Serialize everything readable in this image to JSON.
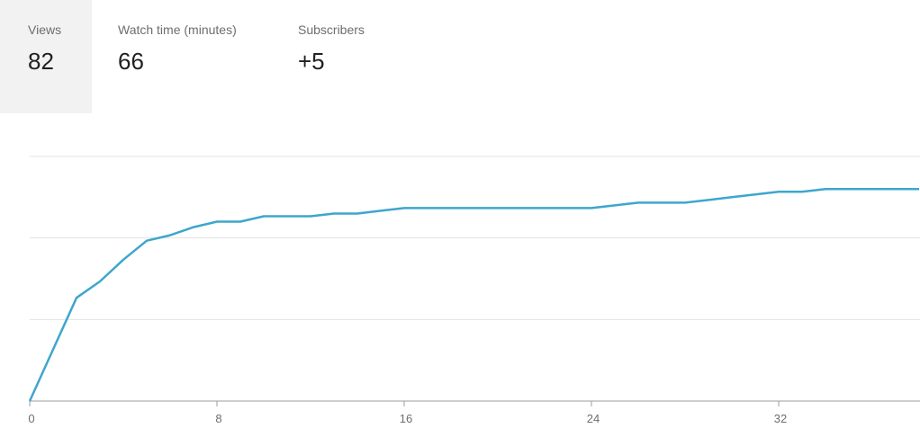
{
  "metrics": {
    "views": {
      "label": "Views",
      "value": "82",
      "selected": true
    },
    "watch_time": {
      "label": "Watch time (minutes)",
      "value": "66",
      "selected": false
    },
    "subscribers": {
      "label": "Subscribers",
      "value": "+5",
      "selected": false
    }
  },
  "colors": {
    "line": "#3ea6cc",
    "grid": "#e3e3e3",
    "axis": "#9e9e9e",
    "selected_tab_bg": "#f2f2f2"
  },
  "chart_data": {
    "type": "line",
    "xlabel": "",
    "ylabel": "",
    "xlim": [
      0,
      38
    ],
    "ylim": [
      0,
      90
    ],
    "grid": true,
    "y_gridlines": [
      30,
      60,
      90
    ],
    "x_ticks": [
      "0",
      "8",
      "16",
      "24",
      "32"
    ],
    "series": [
      {
        "x": [
          0,
          1,
          2,
          3,
          4,
          5,
          6,
          7,
          8,
          9,
          10,
          11,
          12,
          13,
          14,
          15,
          16,
          17,
          18,
          19,
          20,
          21,
          22,
          23,
          24,
          25,
          26,
          27,
          28,
          29,
          30,
          31,
          32,
          33,
          34,
          35,
          36,
          37,
          38
        ],
        "values": [
          0,
          19,
          38,
          44,
          52,
          59,
          61,
          64,
          66,
          66,
          68,
          68,
          68,
          69,
          69,
          70,
          71,
          71,
          71,
          71,
          71,
          71,
          71,
          71,
          71,
          72,
          73,
          73,
          73,
          74,
          75,
          76,
          77,
          77,
          78,
          78,
          78,
          78,
          78
        ]
      }
    ]
  }
}
